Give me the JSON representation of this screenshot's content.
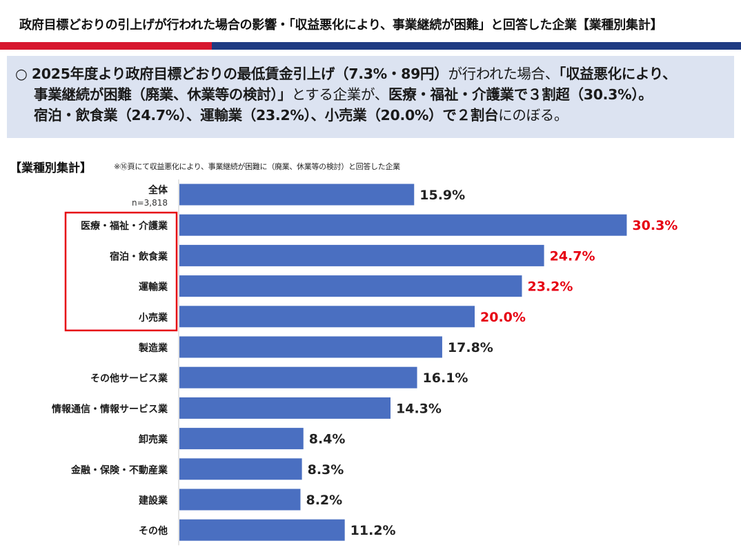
{
  "header": {
    "title": "政府目標どおりの引上げが行われた場合の影響・「収益悪化により、事業継続が困難」と回答した企業【業種別集計】"
  },
  "colors": {
    "bar": "#4a6fc1",
    "highlight_text": "#e60012",
    "highlight_box": "#e60012",
    "accent_red": "#d7172f",
    "accent_navy": "#1f3b82",
    "summary_bg": "#dce3f1"
  },
  "summary": {
    "bullet": "○",
    "l1_a": "2025年度より政府目標どおりの最低賃金引上げ（7.3%・89円）",
    "l1_b": "が行われた場合、",
    "l1_c": "「収益悪化により、",
    "l2_a": "事業継続が困難（廃業、休業等の検討）」",
    "l2_b": "とする企業が、",
    "l2_c": "医療・福祉・介護業で３割超（30.3%）。",
    "l3_a": "宿泊・飲食業（24.7%）、運輸業（23.2%）、小売業（20.0%）で２割台",
    "l3_b": "にのぼる。"
  },
  "section": {
    "heading": "【業種別集計】",
    "note": "※⑯頁にて収益悪化により、事業継続が困難に（廃業、休業等の検討）と回答した企業"
  },
  "chart_data": {
    "type": "bar",
    "orientation": "horizontal",
    "categories": [
      "全体",
      "医療・福祉・介護業",
      "宿泊・飲食業",
      "運輸業",
      "小売業",
      "製造業",
      "その他サービス業",
      "情報通信・情報サービス業",
      "卸売業",
      "金融・保険・不動産業",
      "建設業",
      "その他"
    ],
    "values": [
      15.9,
      30.3,
      24.7,
      23.2,
      20.0,
      17.8,
      16.1,
      14.3,
      8.4,
      8.3,
      8.2,
      11.2
    ],
    "value_labels": [
      "15.9%",
      "30.3%",
      "24.7%",
      "23.2%",
      "20.0%",
      "17.8%",
      "16.1%",
      "14.3%",
      "8.4%",
      "8.3%",
      "8.2%",
      "11.2%"
    ],
    "highlighted": [
      "医療・福祉・介護業",
      "宿泊・飲食業",
      "運輸業",
      "小売業"
    ],
    "total_note": "n=3,818",
    "unit": "%",
    "xlim": [
      0,
      35
    ],
    "title": "",
    "xlabel": "",
    "ylabel": "",
    "grid": false
  }
}
